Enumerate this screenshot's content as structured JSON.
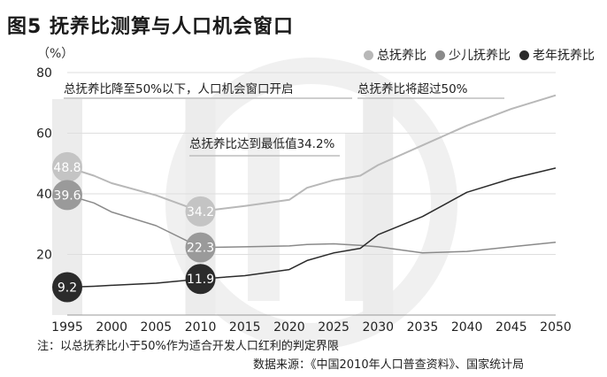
{
  "title": "图5 抚养比测算与人口机会窗口",
  "unit_label": "（%）",
  "legend": [
    {
      "label": "总抚养比",
      "color": "#b8b8b8"
    },
    {
      "label": "少儿抚养比",
      "color": "#8a8a8a"
    },
    {
      "label": "老年抚养比",
      "color": "#2b2b2b"
    }
  ],
  "annotations": [
    "总抚养比降至50%以下，人口机会窗口开启",
    "总抚养比达到最低值34.2%",
    "总抚养比将超过50%"
  ],
  "note": "注：以总抚养比小于50%作为适合开发人口红利的判定界限",
  "source": "数据来源：《中国2010年人口普查资料》、国家统计局",
  "chart_data": {
    "type": "line",
    "x": [
      1995,
      1998,
      2000,
      2005,
      2010,
      2015,
      2020,
      2022,
      2025,
      2028,
      2030,
      2035,
      2040,
      2045,
      2050
    ],
    "xticks": [
      1995,
      2000,
      2005,
      2010,
      2015,
      2020,
      2025,
      2030,
      2035,
      2040,
      2045,
      2050
    ],
    "yticks": [
      20,
      40,
      60,
      80
    ],
    "ylim": [
      0,
      80
    ],
    "xlim": [
      1995,
      2050
    ],
    "series": [
      {
        "name": "总抚养比",
        "color": "#b8b8b8",
        "width": 2,
        "values": [
          48.8,
          46,
          43.5,
          39.5,
          34.2,
          36,
          38,
          42,
          44.5,
          46,
          49.5,
          56,
          62.5,
          68,
          72.5
        ]
      },
      {
        "name": "少儿抚养比",
        "color": "#8a8a8a",
        "width": 1.5,
        "values": [
          39.6,
          37,
          34,
          29.5,
          22.3,
          22.5,
          22.8,
          23.3,
          23.5,
          23,
          22.5,
          20.5,
          21,
          22.5,
          24
        ]
      },
      {
        "name": "老年抚养比",
        "color": "#2b2b2b",
        "width": 1.5,
        "values": [
          9.2,
          9.5,
          9.8,
          10.5,
          11.9,
          13,
          15,
          18,
          20.5,
          22,
          26.5,
          32.5,
          40.5,
          45,
          48.5
        ]
      }
    ],
    "labels": [
      {
        "x": 1995,
        "y": 48.8,
        "text": "48.8",
        "color": "#c4c4c4"
      },
      {
        "x": 1995,
        "y": 39.6,
        "text": "39.6",
        "color": "#9a9a9a"
      },
      {
        "x": 1995,
        "y": 9.2,
        "text": "9.2",
        "color": "#2b2b2b"
      },
      {
        "x": 2010,
        "y": 34.2,
        "text": "34.2",
        "color": "#c4c4c4"
      },
      {
        "x": 2010,
        "y": 22.3,
        "text": "22.3",
        "color": "#9a9a9a"
      },
      {
        "x": 2010,
        "y": 11.9,
        "text": "11.9",
        "color": "#2b2b2b"
      }
    ],
    "highlight_years": [
      1995,
      2010,
      2030
    ]
  }
}
